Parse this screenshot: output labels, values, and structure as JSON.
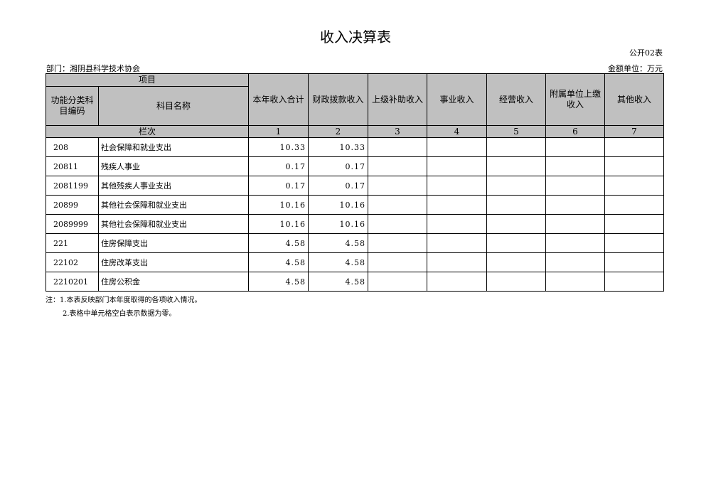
{
  "title": "收入决算表",
  "form_no": "公开02表",
  "department": "部门：湘阴县科学技术协会",
  "unit": "金额单位：万元",
  "headers": {
    "item": "项目",
    "code": "功能分类科目编码",
    "name": "科目名称",
    "cols": [
      "本年收入合计",
      "财政拨款收入",
      "上级补助收入",
      "事业收入",
      "经营收入",
      "附属单位上缴收入",
      "其他收入"
    ],
    "row_label": "栏次",
    "col_nums": [
      "1",
      "2",
      "3",
      "4",
      "5",
      "6",
      "7"
    ]
  },
  "rows": [
    {
      "code": "208",
      "name": "社会保障和就业支出",
      "total": "10.33",
      "fiscal": "10.33"
    },
    {
      "code": "20811",
      "name": "残疾人事业",
      "total": "0.17",
      "fiscal": "0.17"
    },
    {
      "code": "2081199",
      "name": "其他残疾人事业支出",
      "total": "0.17",
      "fiscal": "0.17"
    },
    {
      "code": "20899",
      "name": "其他社会保障和就业支出",
      "total": "10.16",
      "fiscal": "10.16"
    },
    {
      "code": "2089999",
      "name": "其他社会保障和就业支出",
      "total": "10.16",
      "fiscal": "10.16"
    },
    {
      "code": "221",
      "name": "住房保障支出",
      "total": "4.58",
      "fiscal": "4.58"
    },
    {
      "code": "22102",
      "name": "住房改革支出",
      "total": "4.58",
      "fiscal": "4.58"
    },
    {
      "code": "2210201",
      "name": "住房公积金",
      "total": "4.58",
      "fiscal": "4.58"
    }
  ],
  "notes": [
    "注：1.本表反映部门本年度取得的各项收入情况。",
    "2.表格中单元格空白表示数据为零。"
  ]
}
